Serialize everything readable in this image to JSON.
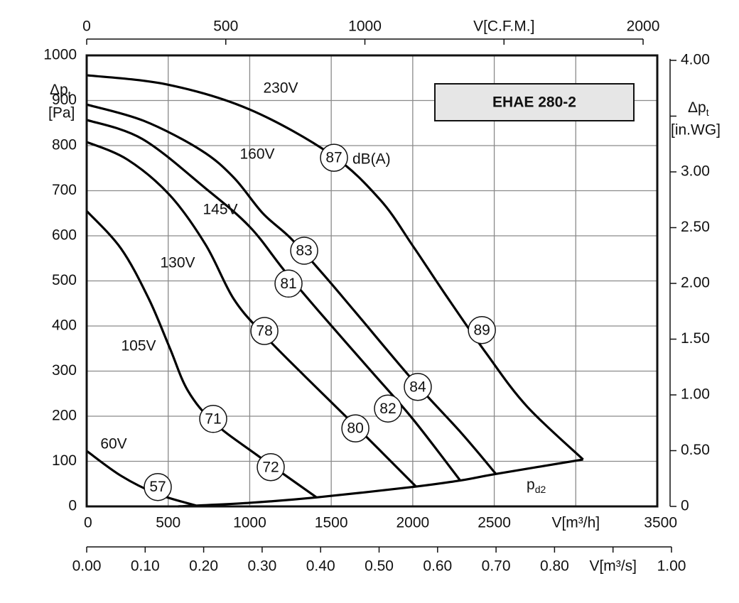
{
  "chart_data": {
    "type": "line",
    "model": "EHAE 280-2",
    "ylabel": {
      "symbol": "Δp",
      "subscript": "t",
      "unit": "[Pa]"
    },
    "y2label": {
      "symbol": "Δp",
      "subscript": "t",
      "unit": "[in.WG]"
    },
    "xlim": [
      0,
      3500
    ],
    "xticks": [
      0,
      500,
      1000,
      1500,
      2000,
      2500,
      {
        "value": 3000,
        "label": "V[m³/h]"
      },
      3500
    ],
    "ylim": [
      0,
      1000
    ],
    "yticks": [
      0,
      100,
      200,
      300,
      400,
      500,
      600,
      700,
      800,
      900,
      1000
    ],
    "y2lim": [
      0,
      4.045
    ],
    "y2ticks": [
      0,
      {
        "value": 0.5,
        "label": "0.50"
      },
      {
        "value": 1,
        "label": "1.00"
      },
      {
        "value": 1.5,
        "label": "1.50"
      },
      {
        "value": 2,
        "label": "2.00"
      },
      {
        "value": 2.5,
        "label": "2.50"
      },
      {
        "value": 3,
        "label": "3.00"
      },
      {
        "value": 3.5,
        "label": "3.50"
      },
      {
        "value": 4,
        "label": "4.00"
      }
    ],
    "cfm_xlim": [
      0,
      2051
    ],
    "cfm_ticks": [
      0,
      500,
      1000,
      {
        "value": 1500,
        "label": "V[C.F.M.]"
      },
      2000
    ],
    "ms_xlim": [
      0,
      1
    ],
    "ms_ticks": [
      {
        "value": 0,
        "label": "0.00"
      },
      {
        "value": 0.1,
        "label": "0.10"
      },
      {
        "value": 0.2,
        "label": "0.20"
      },
      {
        "value": 0.3,
        "label": "0.30"
      },
      {
        "value": 0.4,
        "label": "0.40"
      },
      {
        "value": 0.5,
        "label": "0.50"
      },
      {
        "value": 0.6,
        "label": "0.60"
      },
      {
        "value": 0.7,
        "label": "0.70"
      },
      {
        "value": 0.8,
        "label": "0.80"
      },
      {
        "value": 0.9,
        "label": "V[m³/s]"
      },
      {
        "value": 1,
        "label": "1.00"
      }
    ],
    "grid": true,
    "series": [
      {
        "name": "230V",
        "color": "#000000",
        "x": [
          0,
          500,
          1000,
          1500,
          1800,
          2000,
          2200,
          2450,
          2700,
          3045
        ],
        "values": [
          956,
          935,
          880,
          780,
          680,
          578,
          470,
          340,
          222,
          104
        ]
      },
      {
        "name": "160V",
        "color": "#000000",
        "x": [
          0,
          350,
          700,
          900,
          1080,
          1250,
          1450,
          1650,
          2000,
          2300,
          2510
        ],
        "values": [
          891,
          855,
          790,
          730,
          650,
          595,
          515,
          430,
          280,
          162,
          72
        ]
      },
      {
        "name": "145V",
        "color": "#000000",
        "x": [
          0,
          340,
          730,
          1000,
          1210,
          1430,
          1735,
          2000,
          2290
        ],
        "values": [
          857,
          815,
          705,
          620,
          524,
          430,
          304,
          194,
          58
        ]
      },
      {
        "name": "130V",
        "color": "#000000",
        "x": [
          0,
          250,
          510,
          730,
          900,
          1080,
          1340,
          1650,
          2020
        ],
        "values": [
          808,
          769,
          690,
          580,
          461,
          383,
          288,
          178,
          44
        ]
      },
      {
        "name": "105V",
        "color": "#000000",
        "x": [
          0,
          210,
          380,
          510,
          620,
          780,
          1040,
          1410
        ],
        "values": [
          655,
          572,
          461,
          351,
          257,
          186,
          115,
          20
        ]
      },
      {
        "name": "60V",
        "color": "#000000",
        "x": [
          0,
          210,
          430,
          670
        ],
        "values": [
          123,
          68,
          28,
          2
        ]
      }
    ],
    "pd2": {
      "symbol": "p",
      "subscript": "d2",
      "color": "#000000",
      "x": [
        560,
        1000,
        1410,
        2020,
        2300,
        2510,
        3045
      ],
      "values": [
        0,
        8,
        20,
        44,
        58,
        72,
        104
      ]
    },
    "sound_unit": "dB(A)",
    "sound_levels": [
      {
        "value": 87,
        "x": 1517,
        "y": 773
      },
      {
        "value": 83,
        "x": 1334,
        "y": 567
      },
      {
        "value": 81,
        "x": 1238,
        "y": 494
      },
      {
        "value": 78,
        "x": 1090,
        "y": 389
      },
      {
        "value": 71,
        "x": 776,
        "y": 194
      },
      {
        "value": 72,
        "x": 1129,
        "y": 87
      },
      {
        "value": 57,
        "x": 436,
        "y": 43
      },
      {
        "value": 89,
        "x": 2424,
        "y": 391
      },
      {
        "value": 84,
        "x": 2031,
        "y": 265
      },
      {
        "value": 82,
        "x": 1848,
        "y": 217
      },
      {
        "value": 80,
        "x": 1648,
        "y": 173
      }
    ]
  }
}
